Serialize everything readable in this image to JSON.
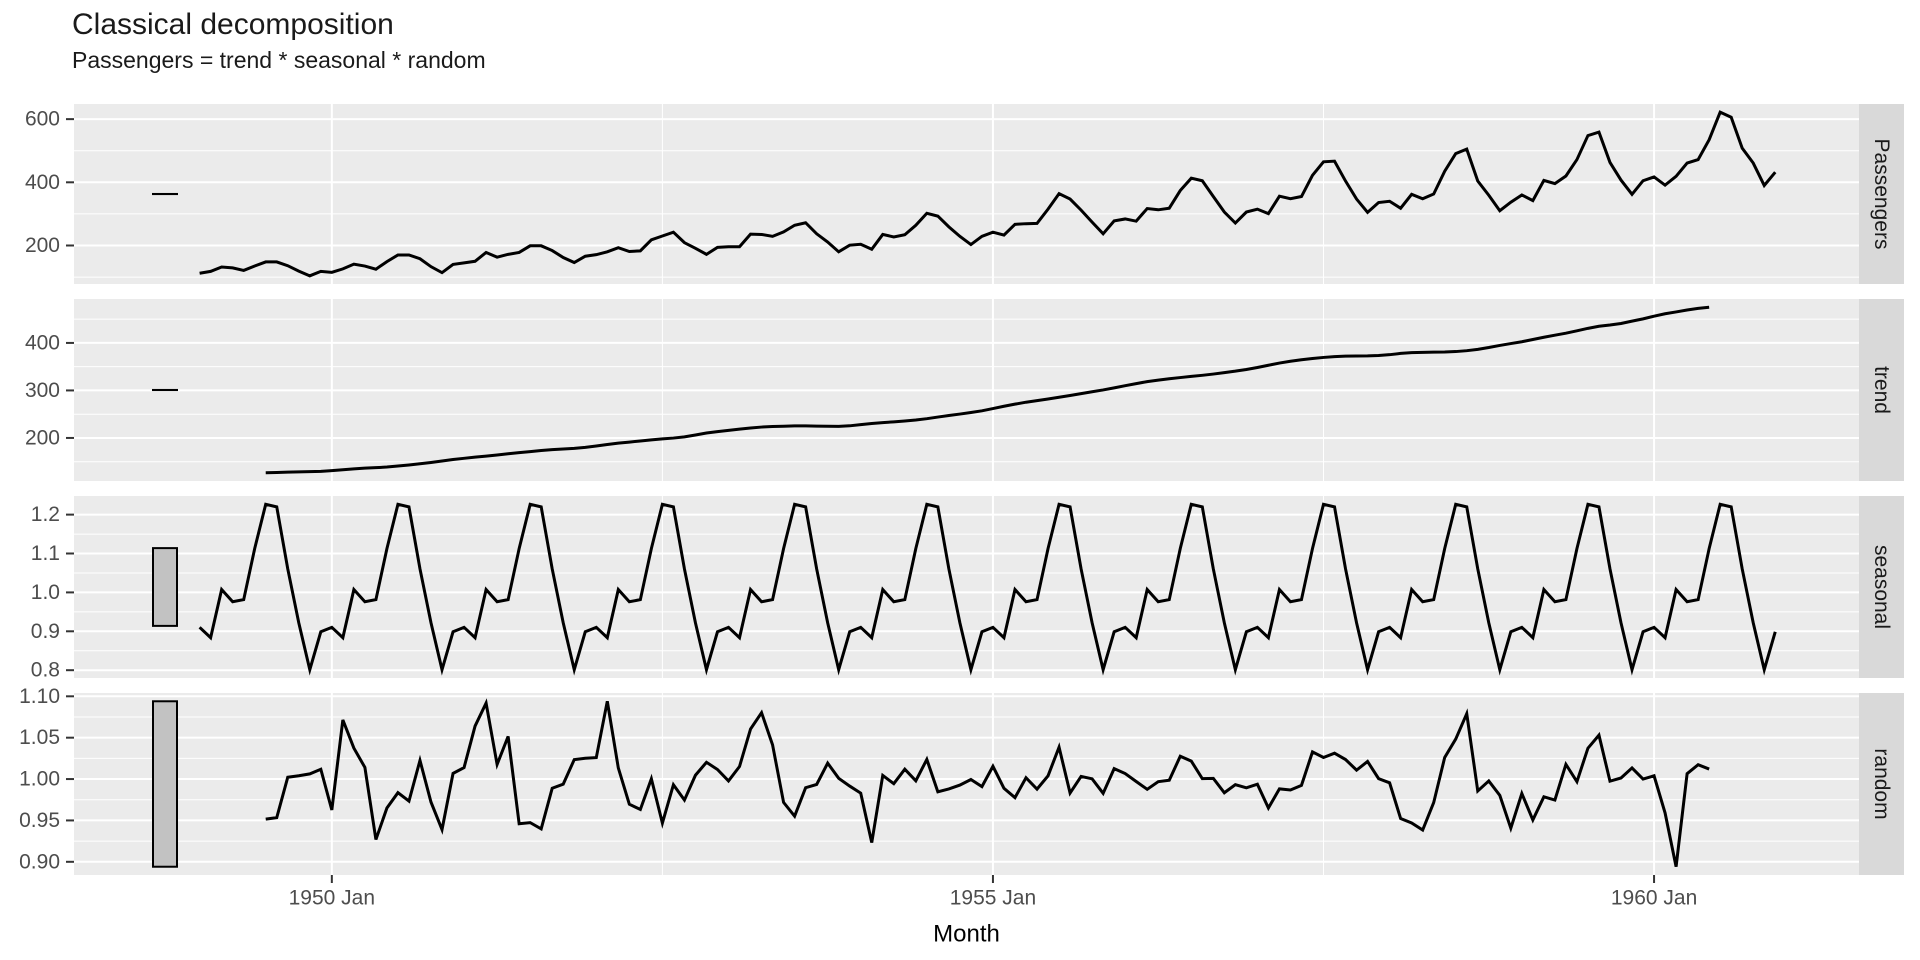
{
  "title": "Classical decomposition",
  "subtitle": "Passengers = trend * seasonal * random",
  "chart_data": {
    "type": "line",
    "title": "Classical decomposition",
    "subtitle": "Passengers = trend * seasonal * random",
    "xlabel": "Month",
    "legend": "none",
    "grid": "white major and minor gridlines on grey panels",
    "layout": "four vertically stacked facet panels sharing the x axis, facet strips on the right",
    "x": {
      "start": "1949 Jan",
      "end": "1960 Dec",
      "frequency_per_year": 12,
      "n_points": 144,
      "tick_values": [
        1950,
        1955,
        1960
      ],
      "tick_labels": [
        "1950 Jan",
        "1955 Jan",
        "1960 Jan"
      ],
      "minor_tick_values": [
        1952.5,
        1957.5
      ],
      "display_range": [
        1948.05,
        1961.55
      ]
    },
    "panels": [
      {
        "key": "passengers",
        "strip_label": "Passengers",
        "y_tick_values": [
          200,
          400,
          600
        ],
        "y_tick_labels": [
          "200",
          "400",
          "600"
        ],
        "y_data_range": [
          104,
          622
        ]
      },
      {
        "key": "trend",
        "strip_label": "trend",
        "y_tick_values": [
          200,
          300,
          400
        ],
        "y_tick_labels": [
          "200",
          "300",
          "400"
        ],
        "y_data_range": [
          126.79,
          475.04
        ]
      },
      {
        "key": "seasonal",
        "strip_label": "seasonal",
        "y_tick_values": [
          0.8,
          0.9,
          1.0,
          1.1,
          1.2
        ],
        "y_tick_labels": [
          "0.8",
          "0.9",
          "1.0",
          "1.1",
          "1.2"
        ],
        "y_data_range": [
          0.8012,
          1.2266
        ]
      },
      {
        "key": "random",
        "strip_label": "random",
        "y_tick_values": [
          0.9,
          0.95,
          1.0,
          1.05,
          1.1
        ],
        "y_tick_labels": [
          "0.90",
          "0.95",
          "1.00",
          "1.05",
          "1.10"
        ],
        "y_data_range": [
          0.894,
          1.096
        ]
      }
    ],
    "series": {
      "passengers": {
        "name": "Passengers",
        "values": [
          112,
          118,
          132,
          129,
          121,
          135,
          148,
          148,
          136,
          119,
          104,
          118,
          115,
          126,
          141,
          135,
          125,
          149,
          170,
          170,
          158,
          133,
          114,
          140,
          145,
          150,
          178,
          163,
          172,
          178,
          199,
          199,
          184,
          162,
          146,
          166,
          171,
          180,
          193,
          181,
          183,
          218,
          230,
          242,
          209,
          191,
          172,
          194,
          196,
          196,
          236,
          235,
          229,
          243,
          264,
          272,
          237,
          211,
          180,
          201,
          204,
          188,
          235,
          227,
          234,
          264,
          302,
          293,
          259,
          229,
          203,
          229,
          242,
          233,
          267,
          269,
          270,
          315,
          364,
          347,
          312,
          274,
          237,
          278,
          284,
          277,
          317,
          313,
          318,
          374,
          413,
          405,
          355,
          306,
          271,
          306,
          315,
          301,
          356,
          348,
          355,
          422,
          465,
          467,
          404,
          347,
          305,
          336,
          340,
          318,
          362,
          348,
          363,
          435,
          491,
          505,
          404,
          359,
          310,
          337,
          360,
          342,
          406,
          396,
          420,
          472,
          548,
          559,
          463,
          407,
          362,
          405,
          417,
          391,
          419,
          461,
          472,
          535,
          622,
          606,
          508,
          461,
          390,
          432
        ]
      },
      "trend": {
        "name": "trend",
        "derivation": "12-month centered moving average of passengers; defined Jul 1949 - Jun 1960, NA at both ends",
        "first_value": 126.79,
        "last_value": 475.04
      },
      "seasonal": {
        "name": "seasonal",
        "derivation": "mean monthly ratio of passengers to trend, normalised to mean 1, repeated every year",
        "figure_jan_to_dec": [
          0.9102,
          0.8836,
          1.0074,
          0.9759,
          0.9814,
          1.1128,
          1.2266,
          1.2199,
          1.0605,
          0.9218,
          0.8012,
          0.8988
        ]
      },
      "random": {
        "name": "random",
        "derivation": "passengers / (trend * seasonal); defined Jul 1949 - Jun 1960",
        "range_approx": [
          0.894,
          1.096
        ]
      }
    },
    "scale_bars": {
      "description": "grey bar at the left of each panel spans the same data height (the range of the random component, ~0.202) to show the relative scale of the panels",
      "bar_fill": "#c2c2c2"
    }
  },
  "colors": {
    "panel_background": "#ebebeb",
    "strip_background": "#d9d9d9",
    "gridline": "#ffffff",
    "series_line": "#000000",
    "scale_bar_fill": "#c2c2c2",
    "scale_bar_border": "#000000",
    "tick_mark": "#333333",
    "tick_label": "#4d4d4d",
    "strip_text": "#1a1a1a",
    "title_text": "#1a1a1a"
  }
}
